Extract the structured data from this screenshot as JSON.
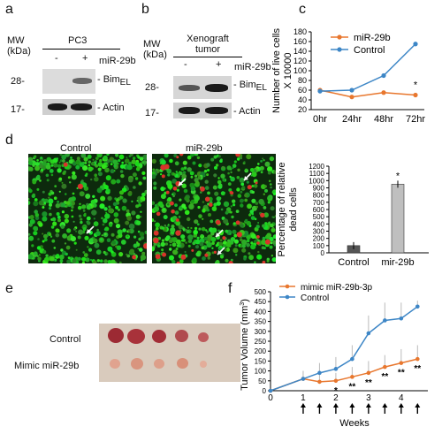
{
  "panels": {
    "a": {
      "letter": "a",
      "mw_label": "MW\n(kDa)",
      "mw_line1": "MW",
      "mw_line2": "(kDa)",
      "cell_line": "PC3",
      "lane_minus": "-",
      "lane_plus": "+",
      "treatment": "miR-29b",
      "marker_28": "28-",
      "marker_17": "17-",
      "band_bim": "- Bim",
      "band_bim_sub": "EL",
      "band_actin": "- Actin"
    },
    "b": {
      "letter": "b",
      "mw_line1": "MW",
      "mw_line2": "(kDa)",
      "sample_line1": "Xenograft",
      "sample_line2": "tumor",
      "lane_minus": "-",
      "lane_plus": "+",
      "treatment": "miR-29b",
      "marker_28": "28-",
      "marker_17": "17-",
      "band_bim": "- Bim",
      "band_bim_sub": "EL",
      "band_actin": "- Actin"
    },
    "c": {
      "letter": "c"
    },
    "d": {
      "letter": "d",
      "image_left_label": "Control",
      "image_right_label": "miR-29b"
    },
    "e": {
      "letter": "e",
      "row1_label": "Control",
      "row2_label": "Mimic miR-29b"
    },
    "f": {
      "letter": "f"
    }
  },
  "chart_data": [
    {
      "panel": "c",
      "type": "line",
      "categories": [
        "0hr",
        "24hr",
        "48hr",
        "72hr"
      ],
      "series": [
        {
          "name": "miR-29b",
          "color": "#e8772e",
          "values": [
            60,
            46,
            55,
            50
          ]
        },
        {
          "name": "Control",
          "color": "#3d86c6",
          "values": [
            58,
            60,
            90,
            155
          ]
        }
      ],
      "ylabel_line1": "Number of live cells",
      "ylabel_line2": "X 10000",
      "yticks": [
        20,
        40,
        60,
        80,
        100,
        120,
        140,
        160,
        180
      ],
      "ylim": [
        20,
        180
      ],
      "annotation": "*",
      "legend": "top"
    },
    {
      "panel": "d",
      "type": "bar",
      "categories": [
        "Control",
        "mir-29b"
      ],
      "values": [
        100,
        950
      ],
      "colors": [
        "#555555",
        "#bfbfbf"
      ],
      "ylabel_line1": "Percentage of relative",
      "ylabel_line2": "dead cells",
      "yticks": [
        0,
        100,
        200,
        300,
        400,
        500,
        600,
        700,
        800,
        900,
        1000,
        1100,
        1200
      ],
      "ylim": [
        0,
        1200
      ],
      "annotation": "*"
    },
    {
      "panel": "f",
      "type": "line",
      "x": [
        0,
        1,
        1.5,
        2,
        2.5,
        3,
        3.5,
        4,
        4.5
      ],
      "series": [
        {
          "name": "mimic miR-29b-3p",
          "color": "#e8772e",
          "values": [
            0,
            60,
            45,
            50,
            70,
            90,
            120,
            140,
            160
          ]
        },
        {
          "name": "Control",
          "color": "#3d86c6",
          "values": [
            0,
            60,
            90,
            110,
            160,
            290,
            355,
            365,
            425
          ]
        }
      ],
      "ylabel_line1": "Tumor Volume (mm",
      "ylabel_sup": "3",
      "ylabel_close": ")",
      "yticks": [
        0,
        50,
        100,
        150,
        200,
        250,
        300,
        350,
        400,
        450,
        500
      ],
      "ylim": [
        0,
        500
      ],
      "xticks": [
        "0",
        "1",
        "2",
        "3",
        "4"
      ],
      "xlabel": "Weeks",
      "annotations": [
        "*",
        "**",
        "**",
        "**",
        "**",
        "**"
      ],
      "legend": "top-left"
    }
  ]
}
